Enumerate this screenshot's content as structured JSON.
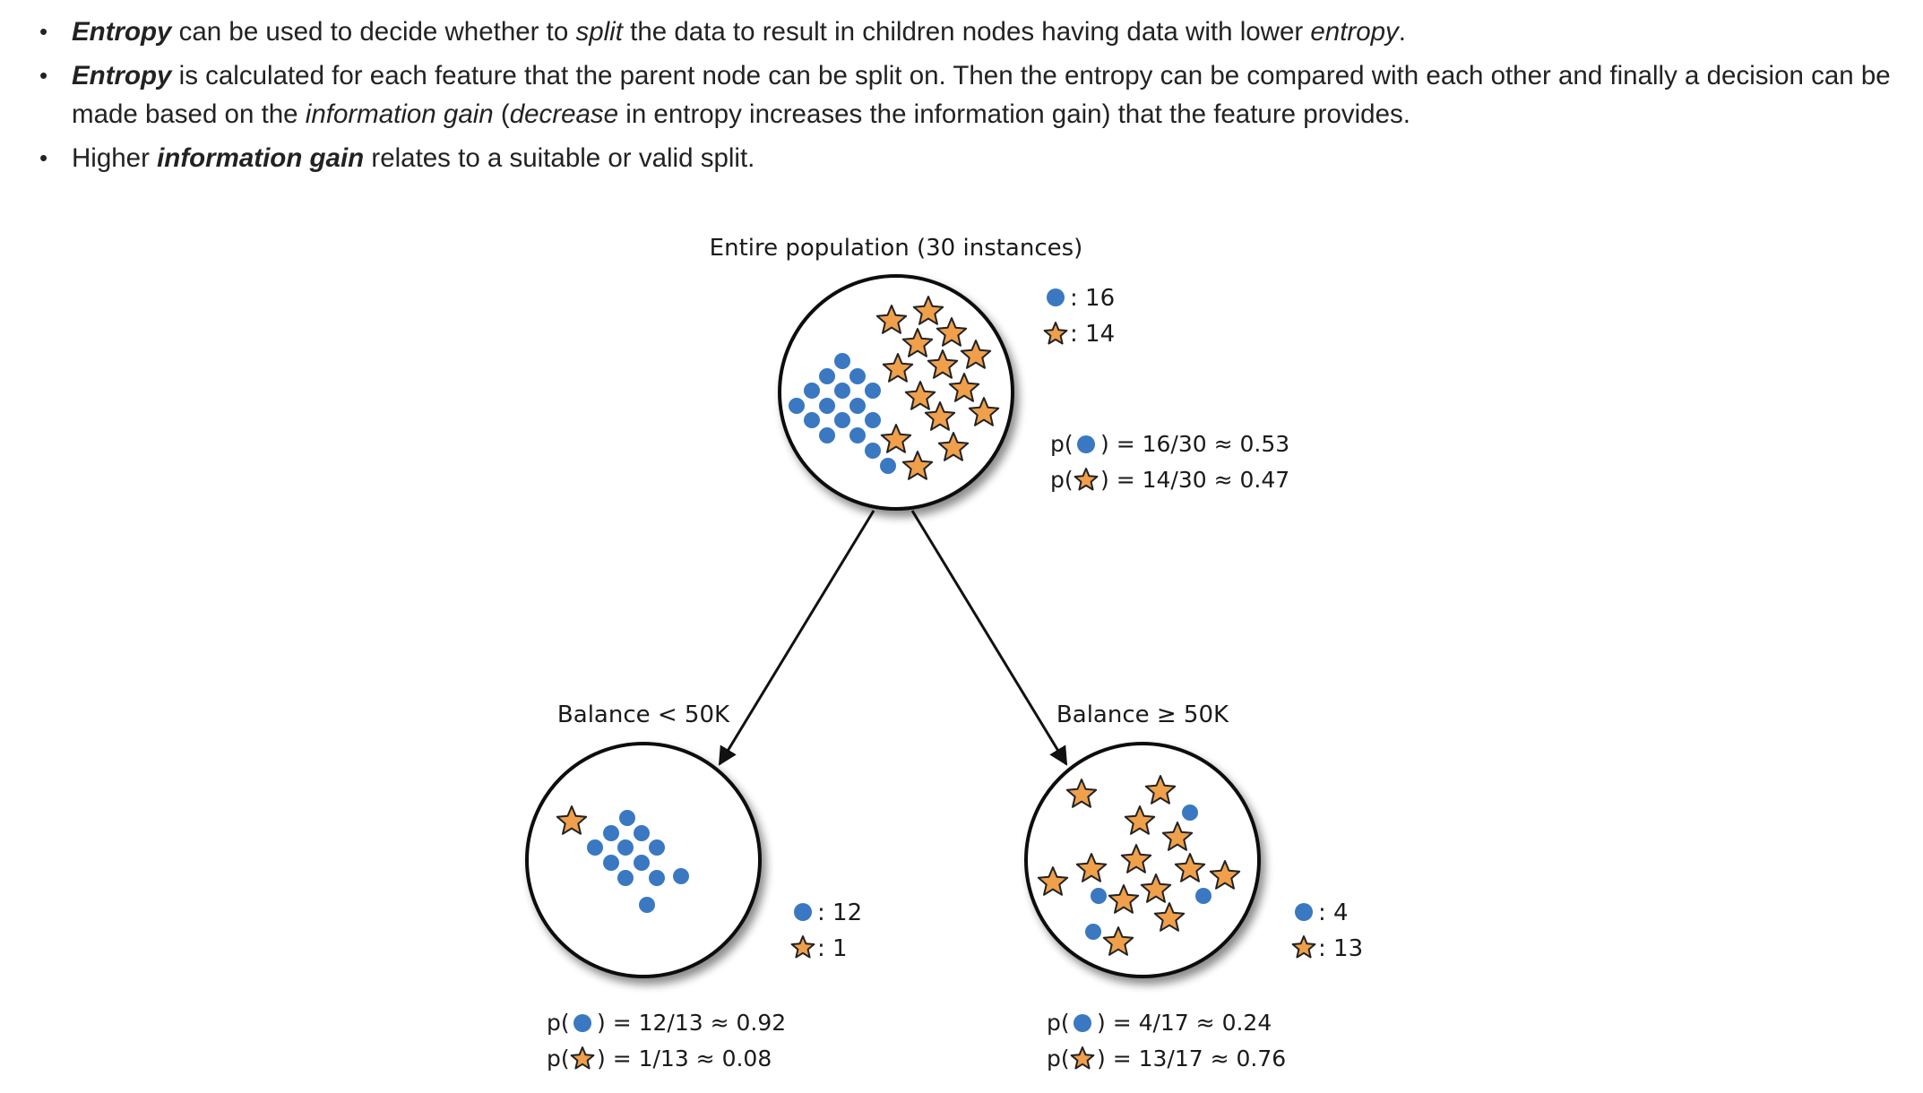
{
  "bullets": [
    {
      "parts": [
        {
          "t": "Entropy",
          "s": "bi"
        },
        {
          "t": " can be used to decide whether to ",
          "s": ""
        },
        {
          "t": "split",
          "s": "i"
        },
        {
          "t": " the data to result in children nodes having data with lower ",
          "s": ""
        },
        {
          "t": "entropy",
          "s": "i"
        },
        {
          "t": ".",
          "s": ""
        }
      ]
    },
    {
      "parts": [
        {
          "t": "Entropy",
          "s": "bi"
        },
        {
          "t": " is calculated for each feature that the parent node can be split on. Then the entropy can be compared with each other and finally a decision can be made based on the ",
          "s": ""
        },
        {
          "t": "information gain",
          "s": "i"
        },
        {
          "t": " (",
          "s": ""
        },
        {
          "t": "decrease",
          "s": "i"
        },
        {
          "t": " in entropy increases the information gain) that the feature provides.",
          "s": ""
        }
      ]
    },
    {
      "parts": [
        {
          "t": "Higher ",
          "s": ""
        },
        {
          "t": "information gain",
          "s": "bi"
        },
        {
          "t": " relates to a suitable or valid split.",
          "s": ""
        }
      ]
    }
  ],
  "diagram": {
    "colors": {
      "dot": "#3a78c2",
      "star": "#f0a04b",
      "star_outline": "#222222",
      "circle": "#111111"
    },
    "parent": {
      "title": "Entire population (30 instances)",
      "count_dot": ": 16",
      "count_star": ": 14",
      "p_dot": ") = 16/30 ≈ 0.53",
      "p_star": ") = 14/30 ≈ 0.47"
    },
    "left": {
      "title": "Balance < 50K",
      "count_dot": ": 12",
      "count_star": ": 1",
      "p_dot": ") = 12/13 ≈ 0.92",
      "p_star": ") = 1/13 ≈ 0.08"
    },
    "right": {
      "title": "Balance ≥ 50K",
      "count_dot": ": 4",
      "count_star": ": 13",
      "p_dot": ") = 4/17 ≈ 0.24",
      "p_star": ") = 13/17 ≈ 0.76"
    },
    "p_prefix": "p("
  }
}
